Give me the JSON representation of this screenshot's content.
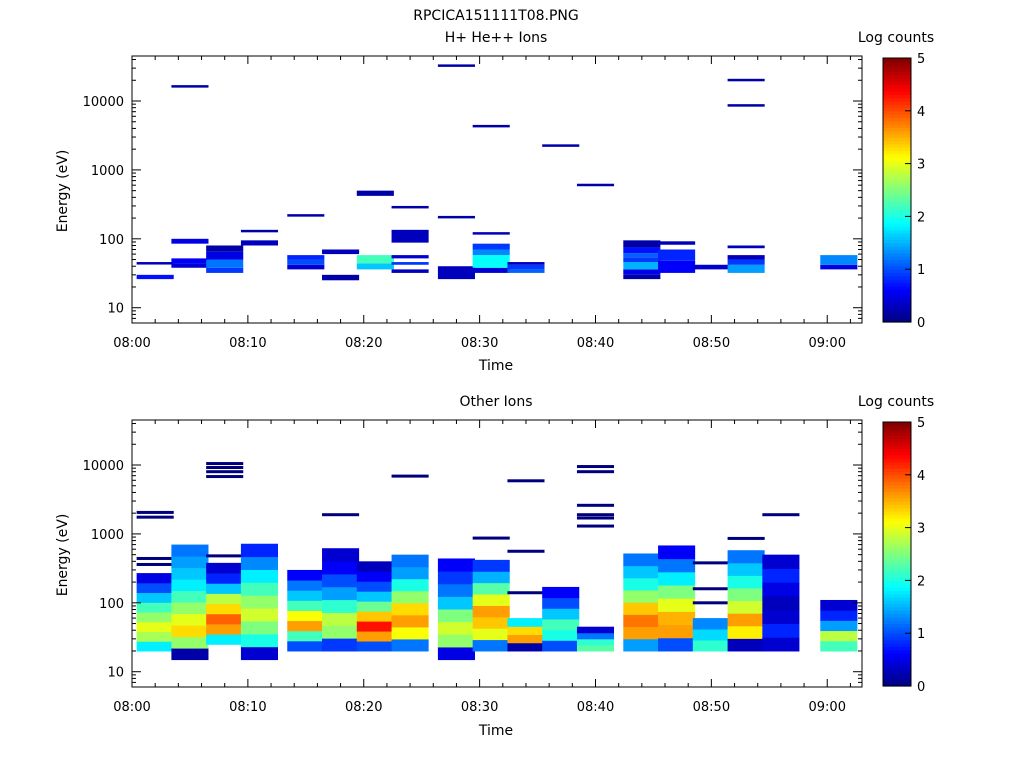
{
  "figure_title": "RPCICA151111T08.PNG",
  "colors": {
    "axis": "#000000",
    "background": "#ffffff",
    "line_marker": "#00007f"
  },
  "colormap": [
    "#00007f",
    "#0000ff",
    "#007fff",
    "#00ffff",
    "#7fff7f",
    "#ffff00",
    "#ff7f00",
    "#ff0000",
    "#7f0000"
  ],
  "colorbar": {
    "label": "Log counts",
    "ticks": [
      0,
      1,
      2,
      3,
      4,
      5
    ],
    "range": [
      0,
      5
    ]
  },
  "chart_data": [
    {
      "type": "heatmap",
      "title": "H+ He++ Ions",
      "xlabel": "Time",
      "ylabel": "Energy (eV)",
      "y_scale": "log",
      "ylim": [
        6,
        45000
      ],
      "xlim": [
        "08:00",
        "09:03"
      ],
      "x_ticks": [
        "08:00",
        "08:10",
        "08:20",
        "08:30",
        "08:40",
        "08:50",
        "09:00"
      ],
      "y_ticks": [
        "10",
        "100",
        "1000",
        "10000"
      ],
      "time_bin_minutes": 3.2,
      "colorbar_label": "Log counts",
      "cells": [
        {
          "t": "08:02",
          "e": [
            26,
            30
          ],
          "v": 0.7
        },
        {
          "t": "08:02",
          "e": [
            44,
            46
          ],
          "v": 0.3
        },
        {
          "t": "08:05",
          "e": [
            38,
            44
          ],
          "v": 0.4
        },
        {
          "t": "08:05",
          "e": [
            44,
            52
          ],
          "v": 0.6
        },
        {
          "t": "08:05",
          "e": [
            85,
            100
          ],
          "v": 0.5
        },
        {
          "t": "08:05",
          "e": [
            16000,
            17000
          ],
          "v": 0.2
        },
        {
          "t": "08:08",
          "e": [
            32,
            38
          ],
          "v": 0.9
        },
        {
          "t": "08:08",
          "e": [
            38,
            50
          ],
          "v": 1.2
        },
        {
          "t": "08:08",
          "e": [
            50,
            65
          ],
          "v": 0.5
        },
        {
          "t": "08:08",
          "e": [
            65,
            80
          ],
          "v": 0.2
        },
        {
          "t": "08:11",
          "e": [
            80,
            95
          ],
          "v": 0.3
        },
        {
          "t": "08:11",
          "e": [
            125,
            135
          ],
          "v": 0.2
        },
        {
          "t": "08:15",
          "e": [
            36,
            42
          ],
          "v": 0.4
        },
        {
          "t": "08:15",
          "e": [
            42,
            50
          ],
          "v": 1.0
        },
        {
          "t": "08:15",
          "e": [
            50,
            58
          ],
          "v": 0.8
        },
        {
          "t": "08:15",
          "e": [
            218,
            228
          ],
          "v": 0.2
        },
        {
          "t": "08:18",
          "e": [
            25,
            30
          ],
          "v": 0.2
        },
        {
          "t": "08:18",
          "e": [
            60,
            70
          ],
          "v": 0.3
        },
        {
          "t": "08:21",
          "e": [
            36,
            44
          ],
          "v": 1.6
        },
        {
          "t": "08:21",
          "e": [
            44,
            58
          ],
          "v": 2.2
        },
        {
          "t": "08:21",
          "e": [
            420,
            500
          ],
          "v": 0.2
        },
        {
          "t": "08:24",
          "e": [
            32,
            36
          ],
          "v": 0.3
        },
        {
          "t": "08:24",
          "e": [
            42,
            46
          ],
          "v": 0.9
        },
        {
          "t": "08:24",
          "e": [
            52,
            58
          ],
          "v": 0.4
        },
        {
          "t": "08:24",
          "e": [
            88,
            135
          ],
          "v": 0.3
        },
        {
          "t": "08:24",
          "e": [
            280,
            300
          ],
          "v": 0.2
        },
        {
          "t": "08:28",
          "e": [
            26,
            40
          ],
          "v": 0.3
        },
        {
          "t": "08:28",
          "e": [
            200,
            215
          ],
          "v": 0.2
        },
        {
          "t": "08:28",
          "e": [
            32000,
            34000
          ],
          "v": 0.2
        },
        {
          "t": "08:31",
          "e": [
            32,
            38
          ],
          "v": 0.4
        },
        {
          "t": "08:31",
          "e": [
            38,
            58
          ],
          "v": 1.9
        },
        {
          "t": "08:31",
          "e": [
            58,
            70
          ],
          "v": 1.3
        },
        {
          "t": "08:31",
          "e": [
            70,
            85
          ],
          "v": 0.9
        },
        {
          "t": "08:31",
          "e": [
            117,
            125
          ],
          "v": 0.3
        },
        {
          "t": "08:31",
          "e": [
            4200,
            4500
          ],
          "v": 0.2
        },
        {
          "t": "08:34",
          "e": [
            32,
            36
          ],
          "v": 1.1
        },
        {
          "t": "08:34",
          "e": [
            36,
            42
          ],
          "v": 0.9
        },
        {
          "t": "08:34",
          "e": [
            42,
            46
          ],
          "v": 0.3
        },
        {
          "t": "08:37",
          "e": [
            2200,
            2350
          ],
          "v": 0.2
        },
        {
          "t": "08:40",
          "e": [
            590,
            630
          ],
          "v": 0.2
        },
        {
          "t": "08:44",
          "e": [
            26,
            30
          ],
          "v": 0.2
        },
        {
          "t": "08:44",
          "e": [
            30,
            36
          ],
          "v": 0.5
        },
        {
          "t": "08:44",
          "e": [
            36,
            46
          ],
          "v": 1.5
        },
        {
          "t": "08:44",
          "e": [
            46,
            54
          ],
          "v": 0.9
        },
        {
          "t": "08:44",
          "e": [
            54,
            62
          ],
          "v": 1.1
        },
        {
          "t": "08:44",
          "e": [
            62,
            75
          ],
          "v": 0.7
        },
        {
          "t": "08:44",
          "e": [
            75,
            95
          ],
          "v": 0.2
        },
        {
          "t": "08:47",
          "e": [
            32,
            48
          ],
          "v": 0.6
        },
        {
          "t": "08:47",
          "e": [
            48,
            70
          ],
          "v": 0.8
        },
        {
          "t": "08:47",
          "e": [
            82,
            92
          ],
          "v": 0.3
        },
        {
          "t": "08:50",
          "e": [
            36,
            42
          ],
          "v": 0.4
        },
        {
          "t": "08:53",
          "e": [
            32,
            42
          ],
          "v": 1.4
        },
        {
          "t": "08:53",
          "e": [
            42,
            50
          ],
          "v": 0.9
        },
        {
          "t": "08:53",
          "e": [
            50,
            58
          ],
          "v": 0.3
        },
        {
          "t": "08:53",
          "e": [
            73,
            80
          ],
          "v": 0.3
        },
        {
          "t": "08:53",
          "e": [
            8500,
            9000
          ],
          "v": 0.2
        },
        {
          "t": "08:53",
          "e": [
            20000,
            21000
          ],
          "v": 0.2
        },
        {
          "t": "09:01",
          "e": [
            36,
            42
          ],
          "v": 0.5
        },
        {
          "t": "09:01",
          "e": [
            42,
            58
          ],
          "v": 1.3
        }
      ]
    },
    {
      "type": "heatmap",
      "title": "Other Ions",
      "xlabel": "Time",
      "ylabel": "Energy (eV)",
      "y_scale": "log",
      "ylim": [
        6,
        45000
      ],
      "xlim": [
        "08:00",
        "09:03"
      ],
      "x_ticks": [
        "08:00",
        "08:10",
        "08:20",
        "08:30",
        "08:40",
        "08:50",
        "09:00"
      ],
      "y_ticks": [
        "10",
        "100",
        "1000",
        "10000"
      ],
      "time_bin_minutes": 3.2,
      "colorbar_label": "Log counts",
      "columns": [
        {
          "t": "08:02",
          "base": 20,
          "top": 270,
          "profile": [
            1.8,
            2.7,
            3.0,
            2.6,
            2.2,
            1.6,
            1.0,
            0.5
          ],
          "lines": [
            360,
            440,
            1750,
            2050
          ]
        },
        {
          "t": "08:05",
          "base": 15,
          "top": 700,
          "profile": [
            0.2,
            2.6,
            3.3,
            3.0,
            2.6,
            2.2,
            1.8,
            1.6,
            1.4,
            1.2
          ]
        },
        {
          "t": "08:08",
          "base": 25,
          "top": 380,
          "profile": [
            1.8,
            3.6,
            3.9,
            3.3,
            2.8,
            1.6,
            0.8,
            0.4
          ],
          "lines": [
            480,
            6800,
            8000,
            9200,
            10500
          ]
        },
        {
          "t": "08:11",
          "base": 15,
          "top": 720,
          "profile": [
            0.4,
            2.0,
            2.5,
            2.9,
            2.6,
            2.2,
            1.8,
            1.3,
            0.8
          ]
        },
        {
          "t": "08:15",
          "base": 20,
          "top": 300,
          "profile": [
            1.0,
            2.2,
            3.6,
            3.1,
            2.2,
            1.6,
            1.2,
            0.6
          ]
        },
        {
          "t": "08:18",
          "base": 20,
          "top": 620,
          "profile": [
            0.9,
            2.6,
            2.8,
            2.1,
            1.4,
            1.0,
            0.6,
            0.4
          ],
          "lines": [
            1900
          ]
        },
        {
          "t": "08:21",
          "base": 20,
          "top": 400,
          "profile": [
            1.0,
            3.6,
            4.3,
            3.4,
            2.4,
            1.6,
            1.0,
            0.6,
            0.3
          ]
        },
        {
          "t": "08:24",
          "base": 20,
          "top": 500,
          "profile": [
            1.2,
            3.1,
            3.6,
            3.3,
            2.6,
            2.0,
            1.4,
            1.2
          ],
          "lines": [
            6900
          ]
        },
        {
          "t": "08:28",
          "base": 15,
          "top": 440,
          "profile": [
            0.5,
            2.6,
            2.9,
            2.5,
            1.6,
            1.2,
            0.9,
            0.6
          ]
        },
        {
          "t": "08:31",
          "base": 20,
          "top": 420,
          "profile": [
            1.2,
            3.0,
            3.4,
            3.6,
            3.0,
            2.3,
            1.5,
            0.9
          ],
          "lines": [
            870
          ]
        },
        {
          "t": "08:34",
          "base": 20,
          "top": 60,
          "profile": [
            0.2,
            3.6,
            3.3,
            1.8
          ],
          "lines": [
            140,
            560,
            5900
          ]
        },
        {
          "t": "08:37",
          "base": 20,
          "top": 170,
          "profile": [
            1.0,
            2.0,
            2.2,
            1.6,
            1.0,
            0.6
          ]
        },
        {
          "t": "08:40",
          "base": 20,
          "top": 45,
          "profile": [
            2.3,
            2.1,
            1.2,
            0.4
          ],
          "lines": [
            1300,
            1700,
            1900,
            2600,
            8000,
            9500
          ]
        },
        {
          "t": "08:44",
          "base": 20,
          "top": 520,
          "profile": [
            1.4,
            3.6,
            3.8,
            3.4,
            2.6,
            2.0,
            1.6,
            1.2
          ]
        },
        {
          "t": "08:47",
          "base": 20,
          "top": 680,
          "profile": [
            1.0,
            3.6,
            3.5,
            3.0,
            2.5,
            1.8,
            1.2,
            0.6
          ]
        },
        {
          "t": "08:50",
          "base": 20,
          "top": 60,
          "profile": [
            2.1,
            1.7,
            1.3
          ],
          "lines": [
            100,
            160,
            380
          ]
        },
        {
          "t": "08:53",
          "base": 20,
          "top": 580,
          "profile": [
            0.3,
            3.2,
            3.6,
            2.9,
            2.5,
            2.0,
            1.6,
            1.2
          ],
          "lines": [
            860
          ]
        },
        {
          "t": "08:56",
          "base": 20,
          "top": 500,
          "profile": [
            0.4,
            0.8,
            0.4,
            0.3,
            0.5,
            0.8,
            0.4
          ],
          "lines": [
            1900
          ]
        },
        {
          "t": "09:01",
          "base": 20,
          "top": 110,
          "profile": [
            2.2,
            2.8,
            1.4,
            0.8,
            0.4
          ]
        }
      ]
    }
  ]
}
